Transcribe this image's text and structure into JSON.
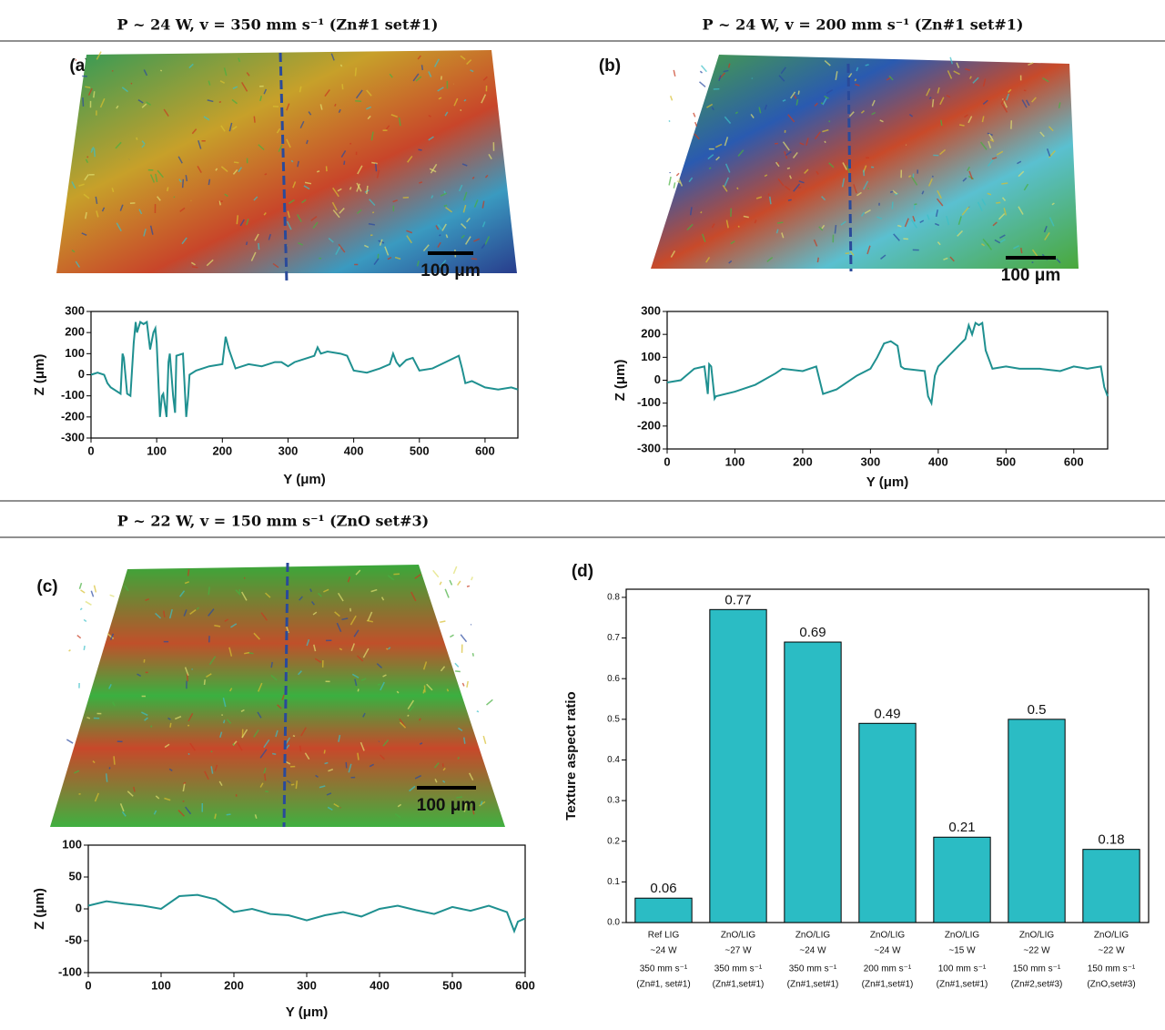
{
  "chart_data": [
    {
      "type": "line",
      "title": "P ~ 24 W, v = 350 mm s⁻¹ (Zn#1 set#1)",
      "panel_label": "(a)",
      "scale_bar_label": "100 μm",
      "x_label": "Y (μm)",
      "y_label": "Z (μm)",
      "color": "#1f9090",
      "xlim": [
        0,
        650
      ],
      "ylim": [
        -300,
        300
      ],
      "xticks": [
        0,
        100,
        200,
        300,
        400,
        500,
        600
      ],
      "yticks": [
        -300,
        -200,
        -100,
        0,
        100,
        200,
        300
      ],
      "x": [
        0,
        10,
        20,
        25,
        30,
        45,
        48,
        50,
        55,
        60,
        65,
        68,
        70,
        75,
        80,
        85,
        90,
        95,
        98,
        100,
        105,
        108,
        110,
        115,
        118,
        120,
        125,
        128,
        130,
        140,
        145,
        148,
        150,
        160,
        180,
        200,
        205,
        210,
        220,
        240,
        260,
        280,
        290,
        300,
        310,
        320,
        340,
        345,
        350,
        360,
        380,
        390,
        400,
        420,
        440,
        455,
        460,
        465,
        470,
        480,
        490,
        495,
        500,
        520,
        540,
        560,
        565,
        570,
        580,
        600,
        620,
        640,
        650
      ],
      "values": [
        0,
        10,
        0,
        -40,
        -60,
        -90,
        100,
        80,
        -90,
        -100,
        150,
        250,
        200,
        250,
        240,
        250,
        120,
        200,
        220,
        150,
        -200,
        -100,
        -90,
        -200,
        60,
        100,
        -100,
        -180,
        90,
        100,
        -200,
        -100,
        0,
        20,
        40,
        50,
        180,
        120,
        30,
        50,
        40,
        60,
        60,
        40,
        60,
        70,
        90,
        130,
        100,
        110,
        100,
        90,
        20,
        10,
        30,
        50,
        100,
        60,
        40,
        70,
        80,
        50,
        20,
        30,
        60,
        90,
        30,
        -40,
        -30,
        -60,
        -70,
        -60,
        -70
      ]
    },
    {
      "type": "line",
      "title": "P ~ 24 W, v = 200 mm s⁻¹ (Zn#1 set#1)",
      "panel_label": "(b)",
      "scale_bar_label": "100 μm",
      "x_label": "Y (μm)",
      "y_label": "Z (μm)",
      "color": "#1f9090",
      "xlim": [
        0,
        650
      ],
      "ylim": [
        -300,
        300
      ],
      "xticks": [
        0,
        100,
        200,
        300,
        400,
        500,
        600
      ],
      "yticks": [
        -300,
        -200,
        -100,
        0,
        100,
        200,
        300
      ],
      "x": [
        0,
        20,
        40,
        55,
        60,
        62,
        65,
        70,
        72,
        100,
        130,
        160,
        170,
        200,
        220,
        225,
        230,
        250,
        280,
        300,
        310,
        320,
        330,
        340,
        345,
        350,
        380,
        385,
        390,
        395,
        400,
        420,
        440,
        445,
        450,
        455,
        460,
        465,
        470,
        480,
        500,
        520,
        550,
        580,
        600,
        620,
        640,
        645,
        650
      ],
      "values": [
        -10,
        0,
        50,
        60,
        -60,
        70,
        60,
        -80,
        -70,
        -50,
        -20,
        30,
        50,
        40,
        60,
        0,
        -60,
        -40,
        20,
        50,
        100,
        160,
        170,
        150,
        60,
        50,
        40,
        -70,
        -100,
        20,
        60,
        120,
        180,
        240,
        200,
        250,
        240,
        250,
        130,
        50,
        60,
        50,
        50,
        40,
        60,
        50,
        60,
        -30,
        -70
      ]
    },
    {
      "type": "line",
      "title": "P ~ 22 W, v = 150 mm s⁻¹ (ZnO set#3)",
      "panel_label": "(c)",
      "scale_bar_label": "100 μm",
      "x_label": "Y (μm)",
      "y_label": "Z (μm)",
      "color": "#1f9090",
      "xlim": [
        0,
        600
      ],
      "ylim": [
        -100,
        100
      ],
      "xticks": [
        0,
        100,
        200,
        300,
        400,
        500,
        600
      ],
      "yticks": [
        -100,
        -50,
        0,
        50,
        100
      ],
      "x": [
        0,
        25,
        50,
        75,
        100,
        125,
        150,
        175,
        200,
        225,
        250,
        275,
        300,
        325,
        350,
        375,
        400,
        425,
        450,
        475,
        500,
        525,
        550,
        575,
        585,
        590,
        600
      ],
      "values": [
        5,
        12,
        8,
        5,
        0,
        20,
        22,
        15,
        -5,
        0,
        -8,
        -10,
        -18,
        -10,
        -5,
        -12,
        0,
        5,
        -2,
        -8,
        3,
        -3,
        5,
        -5,
        -35,
        -20,
        -15
      ]
    },
    {
      "type": "bar",
      "panel_label": "(d)",
      "y_label": "Texture aspect ratio",
      "color": "#2bbcc4",
      "categories": [
        [
          "Ref LIG",
          "~24 W",
          "350 mm s⁻¹",
          "(Zn#1, set#1)"
        ],
        [
          "ZnO/LIG",
          "~27 W",
          "350 mm s⁻¹",
          "(Zn#1,set#1)"
        ],
        [
          "ZnO/LIG",
          "~24 W",
          "350 mm s⁻¹",
          "(Zn#1,set#1)"
        ],
        [
          "ZnO/LIG",
          "~24 W",
          "200 mm s⁻¹",
          "(Zn#1,set#1)"
        ],
        [
          "ZnO/LIG",
          "~15 W",
          "100 mm s⁻¹",
          "(Zn#1,set#1)"
        ],
        [
          "ZnO/LIG",
          "~22 W",
          "150 mm s⁻¹",
          "(Zn#2,set#3)"
        ],
        [
          "ZnO/LIG",
          "~22 W",
          "150 mm s⁻¹",
          "(ZnO,set#3)"
        ]
      ],
      "values": [
        0.06,
        0.77,
        0.69,
        0.49,
        0.21,
        0.5,
        0.18
      ],
      "ylim": [
        0,
        0.82
      ],
      "yticks": [
        {
          "value": 0,
          "label": "0.0"
        },
        0.1,
        0.2,
        0.3,
        0.4,
        0.5,
        0.6,
        0.7,
        0.8
      ]
    }
  ]
}
